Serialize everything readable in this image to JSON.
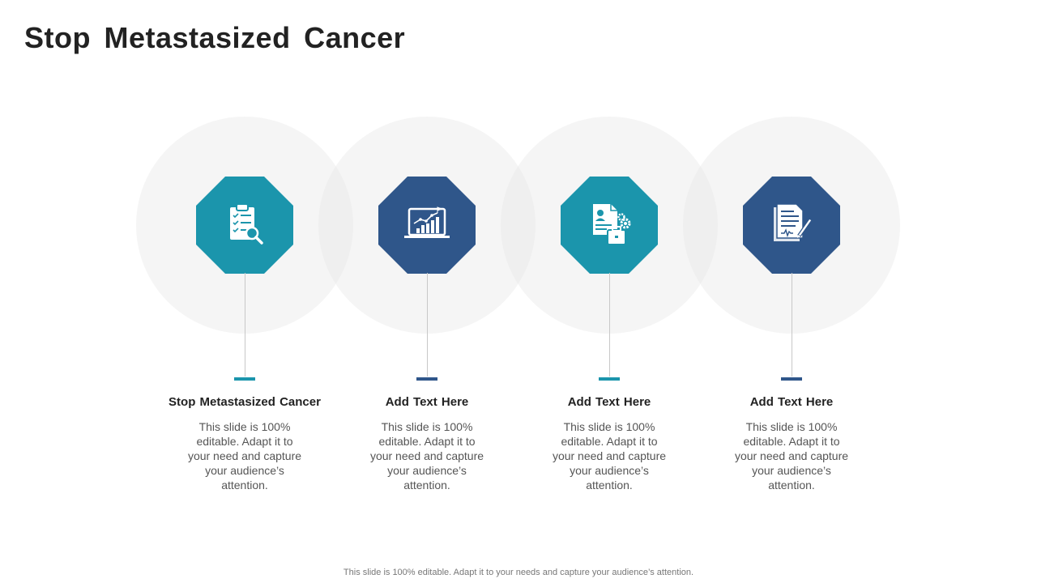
{
  "title": "Stop Metastasized  Cancer",
  "colors": {
    "teal": "#1b95ac",
    "navy": "#2f568a",
    "ring": "#f2f2f2"
  },
  "items": [
    {
      "title": "Stop Metastasized  Cancer",
      "text": "This slide is 100% editable. Adapt it to your need and capture your audience’s attention.",
      "icon": "clipboard-search-icon",
      "color": "teal"
    },
    {
      "title": "Add Text Here",
      "text": "This slide is 100% editable. Adapt it to your need and capture your audience’s attention.",
      "icon": "laptop-chart-icon",
      "color": "navy"
    },
    {
      "title": "Add Text Here",
      "text": "This slide is 100% editable. Adapt it to your need and capture your audience’s attention.",
      "icon": "resume-briefcase-gear-icon",
      "color": "teal"
    },
    {
      "title": "Add Text Here",
      "text": "This slide is 100% editable. Adapt it to your need and capture your audience’s attention.",
      "icon": "document-signature-icon",
      "color": "navy"
    }
  ],
  "footer": "This slide is 100% editable. Adapt it to your needs and capture your audience’s attention."
}
